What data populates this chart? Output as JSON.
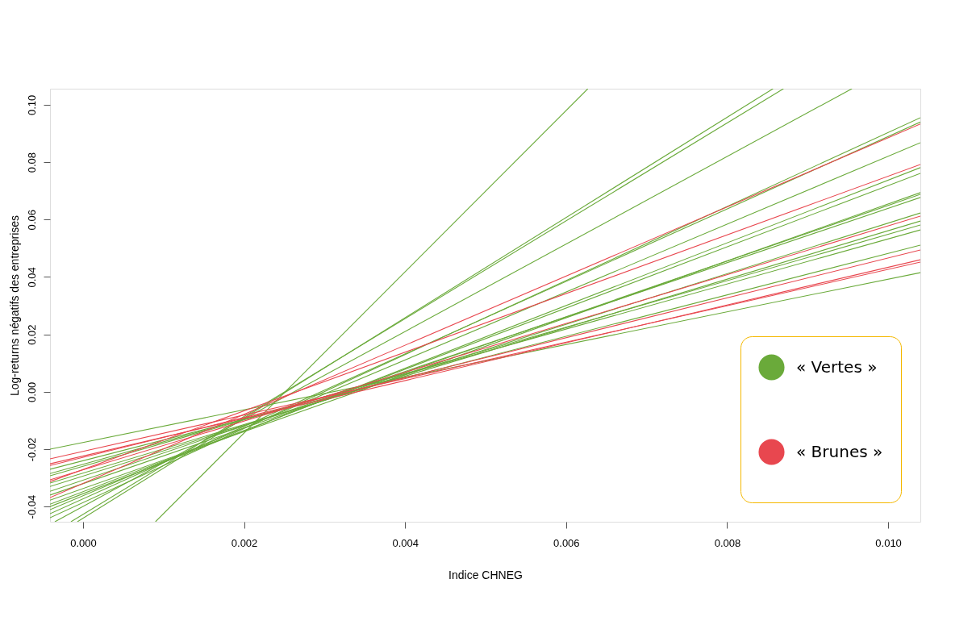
{
  "chart_data": {
    "type": "line",
    "xlabel": "Indice CHNEG",
    "ylabel": "Log-returns négatifs des entreprises",
    "xlim": [
      -0.00041,
      0.0104
    ],
    "ylim": [
      -0.0453,
      0.1056
    ],
    "xticks": [
      {
        "value": 0,
        "label": "0.000"
      },
      {
        "value": 0.002,
        "label": "0.002"
      },
      {
        "value": 0.004,
        "label": "0.004"
      },
      {
        "value": 0.006,
        "label": "0.006"
      },
      {
        "value": 0.008,
        "label": "0.008"
      },
      {
        "value": 0.01,
        "label": "0.010"
      }
    ],
    "yticks": [
      {
        "value": -0.04,
        "label": "-0.04"
      },
      {
        "value": -0.02,
        "label": "-0.02"
      },
      {
        "value": 0,
        "label": "0.00"
      },
      {
        "value": 0.02,
        "label": "0.02"
      },
      {
        "value": 0.04,
        "label": "0.04"
      },
      {
        "value": 0.06,
        "label": "0.06"
      },
      {
        "value": 0.08,
        "label": "0.08"
      },
      {
        "value": 0.1,
        "label": "0.10"
      }
    ],
    "grid": false,
    "legend": "bottom right",
    "marker": "none",
    "line_style": "solid",
    "series": [
      {
        "name": "« Vertes »",
        "color": "#6aaa3a",
        "x": [
          -0.00041,
          0.0104
        ],
        "values": [
          -0.02,
          0.0415
        ]
      },
      {
        "color": "#6aaa3a",
        "x": [
          -0.00041,
          0.0104
        ],
        "values": [
          -0.027,
          0.0511
        ]
      },
      {
        "color": "#6aaa3a",
        "x": [
          -0.00041,
          0.0104
        ],
        "values": [
          -0.0285,
          0.0564
        ]
      },
      {
        "color": "#6aaa3a",
        "x": [
          -0.00041,
          0.0104
        ],
        "values": [
          -0.0293,
          0.0581
        ]
      },
      {
        "color": "#6aaa3a",
        "x": [
          -0.00041,
          0.0104
        ],
        "values": [
          -0.0318,
          0.0595
        ]
      },
      {
        "color": "#6aaa3a",
        "x": [
          -0.00041,
          0.0104
        ],
        "values": [
          -0.033,
          0.0623
        ]
      },
      {
        "color": "#6aaa3a",
        "x": [
          -0.00041,
          0.0104
        ],
        "values": [
          -0.0347,
          0.0677
        ]
      },
      {
        "color": "#6aaa3a",
        "x": [
          -0.00041,
          0.0104
        ],
        "values": [
          -0.036,
          0.0688
        ]
      },
      {
        "color": "#6aaa3a",
        "x": [
          -0.00041,
          0.0104
        ],
        "values": [
          -0.0378,
          0.0694
        ]
      },
      {
        "color": "#6aaa3a",
        "x": [
          -0.00041,
          0.0104
        ],
        "values": [
          -0.0392,
          0.0761
        ]
      },
      {
        "color": "#6aaa3a",
        "x": [
          -0.00041,
          0.0104
        ],
        "values": [
          -0.04,
          0.0781
        ]
      },
      {
        "color": "#6aaa3a",
        "x": [
          -0.00041,
          0.0104
        ],
        "values": [
          -0.0411,
          0.0868
        ]
      },
      {
        "color": "#6aaa3a",
        "x": [
          -0.00041,
          0.0104
        ],
        "values": [
          -0.0425,
          0.094
        ]
      },
      {
        "color": "#6aaa3a",
        "x": [
          -0.00041,
          0.0104
        ],
        "values": [
          -0.0439,
          0.0955
        ]
      },
      {
        "color": "#6aaa3a",
        "x": [
          -0.00035,
          0.00955
        ],
        "values": [
          -0.0453,
          0.1056
        ]
      },
      {
        "color": "#6aaa3a",
        "x": [
          -0.00015,
          0.0087
        ],
        "values": [
          -0.0453,
          0.1056
        ]
      },
      {
        "color": "#6aaa3a",
        "x": [
          -7e-05,
          0.00857
        ],
        "values": [
          -0.0453,
          0.1056
        ]
      },
      {
        "color": "#6aaa3a",
        "x": [
          0.0009,
          0.00627
        ],
        "values": [
          -0.0453,
          0.1056
        ]
      },
      {
        "name": "« Brunes »",
        "color": "#e8474f",
        "x": [
          -0.00041,
          0.0104
        ],
        "values": [
          -0.0234,
          0.0452
        ]
      },
      {
        "color": "#e8474f",
        "x": [
          -0.00041,
          0.0104
        ],
        "values": [
          -0.0251,
          0.046
        ]
      },
      {
        "color": "#e8474f",
        "x": [
          -0.00041,
          0.0104
        ],
        "values": [
          -0.0257,
          0.0494
        ]
      },
      {
        "color": "#e8474f",
        "x": [
          -0.00041,
          0.0104
        ],
        "values": [
          -0.0307,
          0.0612
        ]
      },
      {
        "color": "#e8474f",
        "x": [
          -0.00041,
          0.0104
        ],
        "values": [
          -0.0313,
          0.0792
        ]
      },
      {
        "color": "#e8474f",
        "x": [
          -0.00041,
          0.0104
        ],
        "values": [
          -0.0369,
          0.0933
        ]
      }
    ]
  }
}
